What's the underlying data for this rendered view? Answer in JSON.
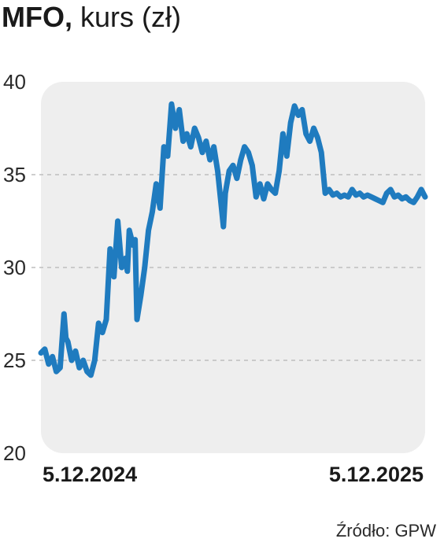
{
  "title": {
    "bold": "MFO,",
    "light": " kurs (zł)"
  },
  "source": "Źródło: GPW",
  "colors": {
    "line": "#1f7bbf",
    "panel": "#eeeeee",
    "grid": "#bdbdbd",
    "text": "#1a1a1a"
  },
  "chart_data": {
    "type": "line",
    "title": "MFO, kurs (zł)",
    "xlabel": "",
    "ylabel": "",
    "ylim": [
      20,
      40
    ],
    "yticks": [
      "40",
      "35",
      "30",
      "25",
      "20"
    ],
    "xticks": [
      "5.12.2024",
      "5.12.2025"
    ],
    "grid": "horizontal dashed at 25, 30, 35",
    "series": [
      {
        "x": [
          0,
          0.01,
          0.02,
          0.03,
          0.04,
          0.05,
          0.06,
          0.065,
          0.07,
          0.08,
          0.09,
          0.1,
          0.11,
          0.12,
          0.13,
          0.14,
          0.15,
          0.16,
          0.17,
          0.18,
          0.19,
          0.2,
          0.21,
          0.22,
          0.225,
          0.23,
          0.24,
          0.245,
          0.25,
          0.26,
          0.27,
          0.28,
          0.29,
          0.3,
          0.31,
          0.32,
          0.33,
          0.34,
          0.35,
          0.36,
          0.37,
          0.38,
          0.39,
          0.4,
          0.41,
          0.42,
          0.43,
          0.44,
          0.45,
          0.46,
          0.47,
          0.475,
          0.48,
          0.49,
          0.5,
          0.51,
          0.52,
          0.53,
          0.54,
          0.55,
          0.56,
          0.57,
          0.58,
          0.59,
          0.6,
          0.61,
          0.62,
          0.63,
          0.64,
          0.65,
          0.66,
          0.67,
          0.68,
          0.69,
          0.7,
          0.71,
          0.72,
          0.73,
          0.74,
          0.75,
          0.76,
          0.77,
          0.78,
          0.79,
          0.8,
          0.81,
          0.82,
          0.83,
          0.84,
          0.85,
          0.86,
          0.87,
          0.88,
          0.89,
          0.9,
          0.91,
          0.92,
          0.93,
          0.94,
          0.95,
          0.96,
          0.97,
          0.98,
          0.99,
          1.0
        ],
        "values": [
          25.4,
          25.6,
          24.8,
          25.2,
          24.4,
          24.6,
          27.5,
          26.2,
          26.0,
          25.0,
          25.5,
          24.6,
          25.0,
          24.4,
          24.2,
          25.0,
          27.0,
          26.5,
          27.2,
          31.0,
          29.5,
          32.5,
          30.0,
          30.5,
          29.8,
          32.0,
          31.2,
          31.5,
          27.2,
          28.5,
          30.0,
          32.0,
          33.0,
          34.5,
          33.2,
          36.5,
          36.0,
          38.8,
          37.5,
          38.5,
          36.8,
          37.2,
          36.5,
          37.5,
          37.0,
          36.2,
          36.8,
          35.8,
          36.5,
          35.2,
          33.2,
          32.2,
          34.0,
          35.2,
          35.5,
          34.8,
          35.8,
          36.5,
          36.2,
          35.5,
          33.8,
          34.5,
          33.7,
          34.5,
          34.2,
          34.0,
          35.2,
          37.2,
          36.0,
          37.8,
          38.7,
          38.2,
          38.5,
          37.2,
          36.8,
          37.5,
          37.0,
          36.2,
          34.0,
          34.2,
          33.9,
          34.0,
          33.8,
          33.9,
          33.8,
          34.2,
          33.9,
          34.0,
          33.8,
          33.9,
          33.8,
          33.7,
          33.6,
          33.5,
          34.0,
          34.2,
          33.8,
          33.9,
          33.7,
          33.8,
          33.6,
          33.5,
          33.8,
          34.2,
          33.8
        ]
      }
    ]
  }
}
